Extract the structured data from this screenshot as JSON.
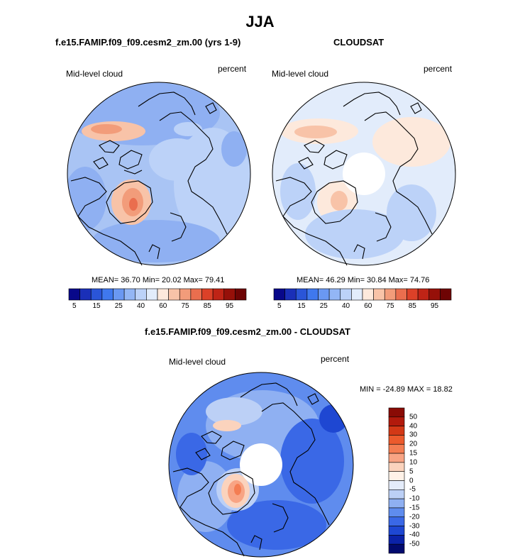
{
  "figure": {
    "title": "JJA",
    "panel_left": {
      "title": "f.e15.FAMIP.f09_f09.cesm2_zm.00 (yrs 1-9)",
      "variable": "Mid-level cloud",
      "units": "percent",
      "stats": "MEAN=  36.70  Min=  20.02  Max=  79.41"
    },
    "panel_right": {
      "title": "CLOUDSAT",
      "variable": "Mid-level cloud",
      "units": "percent",
      "stats": "MEAN=  46.29  Min=  30.84  Max=  74.76"
    },
    "panel_diff": {
      "title": "f.e15.FAMIP.f09_f09.cesm2_zm.00 - CLOUDSAT",
      "variable": "Mid-level cloud",
      "units": "percent",
      "stats": "MIN = -24.89 MAX =  18.82"
    },
    "colorbar_abs": {
      "tick_labels": [
        "5",
        "15",
        "25",
        "40",
        "60",
        "75",
        "85",
        "95"
      ],
      "colors": [
        "#08088a",
        "#1a2fb8",
        "#2a55d8",
        "#3f78ee",
        "#6a98f2",
        "#93b6f5",
        "#bcd2f8",
        "#e2ecfb",
        "#fde9dc",
        "#f8c3a8",
        "#f29c7a",
        "#ea6e4e",
        "#dc4128",
        "#bf2416",
        "#961009",
        "#6e0404"
      ]
    },
    "colorbar_diff": {
      "tick_labels": [
        "50",
        "40",
        "30",
        "20",
        "15",
        "10",
        "5",
        "0",
        "-5",
        "-10",
        "-15",
        "-20",
        "-30",
        "-40",
        "-50"
      ],
      "colors": [
        "#8a0b05",
        "#b21a0c",
        "#d33816",
        "#ec5a2c",
        "#f47d52",
        "#f8a484",
        "#fbd3bd",
        "#fff2e8",
        "#e4ecfa",
        "#bcd0f6",
        "#8fb0f2",
        "#5f8cee",
        "#3a68e6",
        "#1e47d2",
        "#0b22a8",
        "#020a6e"
      ]
    }
  }
}
